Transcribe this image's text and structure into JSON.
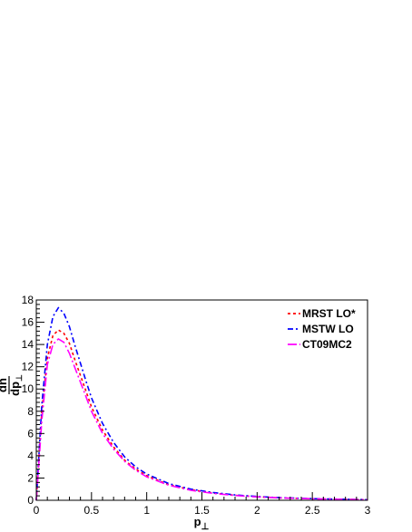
{
  "chart_data": {
    "type": "line",
    "xlabel_main": "p",
    "xlabel_sub": "⊥",
    "ylabel_num": "dn",
    "ylabel_den": "dp",
    "ylabel_den_sub": "⊥",
    "xlim": [
      0,
      3
    ],
    "ylim": [
      0,
      18
    ],
    "x_major_ticks": [
      0,
      0.5,
      1,
      1.5,
      2,
      2.5,
      3
    ],
    "x_tick_labels": [
      "0",
      "0.5",
      "1",
      "1.5",
      "2",
      "2.5",
      "3"
    ],
    "y_major_ticks": [
      0,
      2,
      4,
      6,
      8,
      10,
      12,
      14,
      16,
      18
    ],
    "y_tick_labels": [
      "0",
      "2",
      "4",
      "6",
      "8",
      "10",
      "12",
      "14",
      "16",
      "18"
    ],
    "grid": false,
    "legend_position": "top-right",
    "x": [
      0.025,
      0.05,
      0.1,
      0.15,
      0.2,
      0.25,
      0.3,
      0.35,
      0.4,
      0.45,
      0.5,
      0.6,
      0.7,
      0.8,
      0.9,
      1.0,
      1.2,
      1.4,
      1.6,
      1.8,
      2.0,
      2.2,
      2.5,
      2.8,
      3.0
    ],
    "series": [
      {
        "name": "MRST LO*",
        "color": "#ff0000",
        "dash": "3,3",
        "values": [
          4.0,
          8.0,
          12.8,
          14.8,
          15.3,
          15.0,
          14.1,
          12.6,
          11.2,
          9.8,
          8.4,
          6.3,
          4.8,
          3.6,
          2.8,
          2.2,
          1.4,
          0.95,
          0.65,
          0.45,
          0.32,
          0.22,
          0.14,
          0.08,
          0.06
        ]
      },
      {
        "name": "MSTW LO",
        "color": "#0000ff",
        "dash": "6,3,2,3",
        "values": [
          4.2,
          8.6,
          14.0,
          16.5,
          17.3,
          16.8,
          15.6,
          13.9,
          12.3,
          10.7,
          9.2,
          6.9,
          5.2,
          3.9,
          3.0,
          2.35,
          1.5,
          1.0,
          0.7,
          0.48,
          0.34,
          0.24,
          0.15,
          0.09,
          0.06
        ]
      },
      {
        "name": "CT09MC2",
        "color": "#ff00ff",
        "dash": "10,3,2,3",
        "values": [
          3.5,
          7.2,
          12.2,
          14.0,
          14.5,
          14.2,
          13.2,
          11.9,
          10.6,
          9.3,
          8.0,
          6.0,
          4.6,
          3.5,
          2.7,
          2.1,
          1.35,
          0.9,
          0.62,
          0.43,
          0.3,
          0.21,
          0.13,
          0.08,
          0.05
        ]
      }
    ]
  }
}
